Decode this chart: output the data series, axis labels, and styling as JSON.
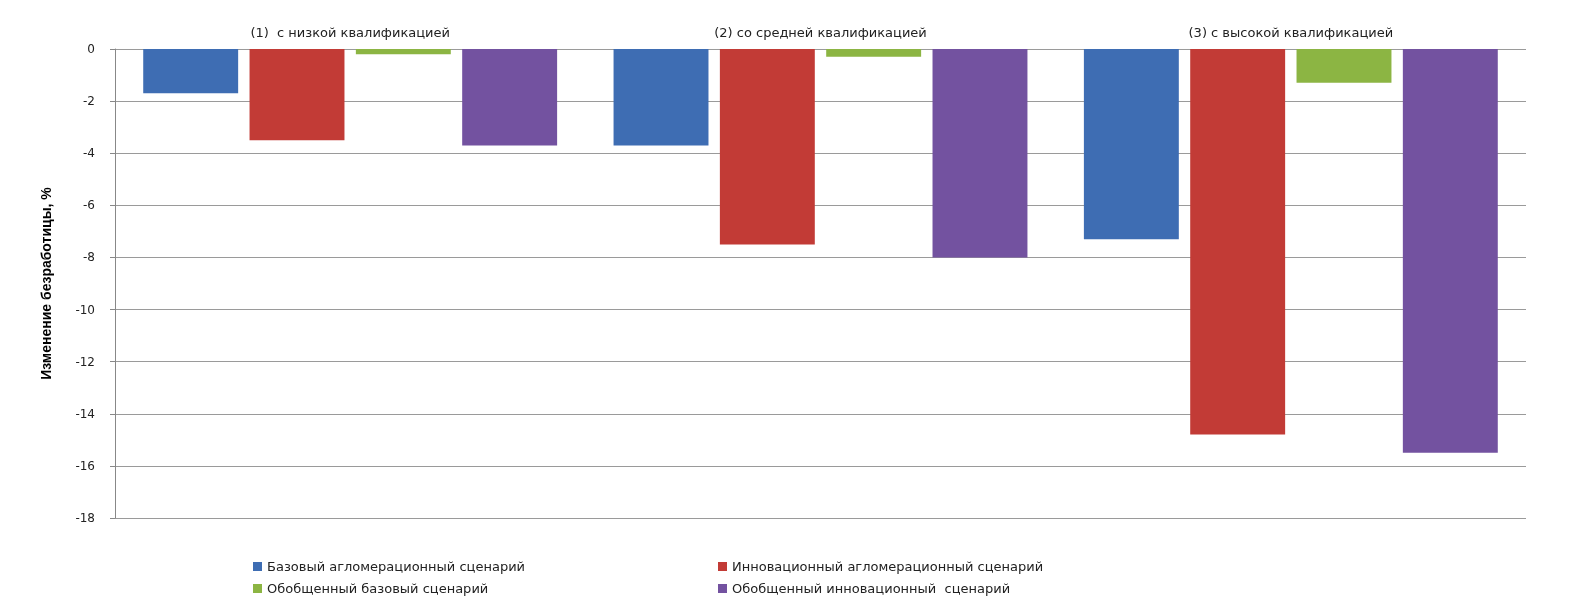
{
  "chart_data": {
    "type": "bar",
    "ylabel": "Изменение безработицы, %",
    "categories": [
      "(1)  с низкой квалификацией",
      "(2) со средней квалификацией",
      "(3) с высокой квалификацией"
    ],
    "series": [
      {
        "name": "Базовый агломерационный сценарий",
        "color": "#3e6db3",
        "values": [
          -1.7,
          -3.7,
          -7.3
        ]
      },
      {
        "name": "Инновационный агломерационный сценарий",
        "color": "#c23b36",
        "values": [
          -3.5,
          -7.5,
          -14.8
        ]
      },
      {
        "name": "Обобщенный базовый сценарий",
        "color": "#8cb543",
        "values": [
          -0.2,
          -0.3,
          -1.3
        ]
      },
      {
        "name": "Обобщенный инновационный  сценарий",
        "color": "#7352a0",
        "values": [
          -3.7,
          -8.0,
          -15.5
        ]
      }
    ],
    "ylim": [
      -18,
      0
    ],
    "yticks": [
      -18,
      -16,
      -14,
      -12,
      -10,
      -8,
      -6,
      -4,
      -2,
      0
    ],
    "grid": "y",
    "legend": "bottom"
  }
}
